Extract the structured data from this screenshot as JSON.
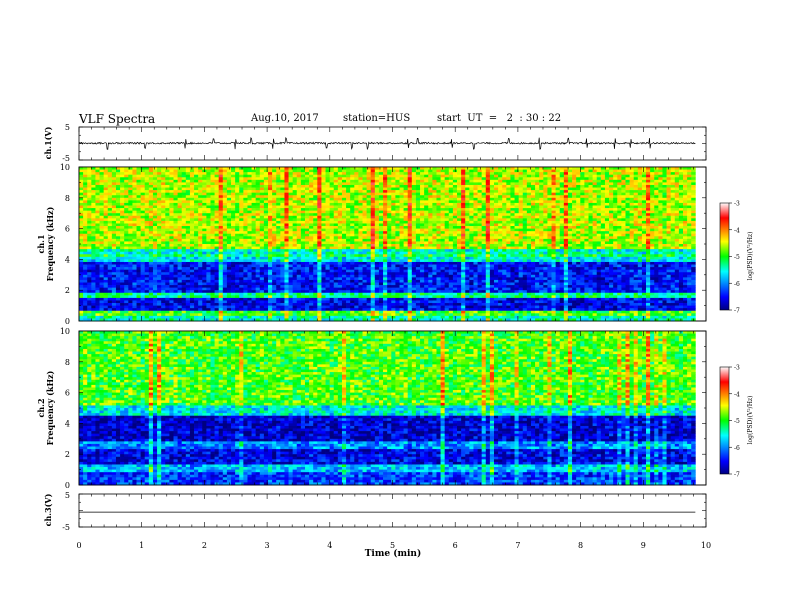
{
  "header": {
    "title": "VLF Spectra",
    "date": "Aug.10, 2017",
    "station": "station=HUS",
    "start": "start  UT  =   2  : 30 : 22"
  },
  "chart_data": [
    {
      "type": "line",
      "name": "ch1-waveform",
      "ylabel": "ch.1(V)",
      "ylim": [
        -5,
        5
      ],
      "yticks": [
        "5",
        "-5"
      ],
      "xlim": [
        0,
        10
      ],
      "baseline": 0.1,
      "noise_amplitude": 0.25,
      "spike_times": [
        0.45,
        1.05,
        1.7,
        2.15,
        2.5,
        2.75,
        3.1,
        3.3,
        3.95,
        4.35,
        4.6,
        5.25,
        5.4,
        5.95,
        6.3,
        6.85,
        7.35,
        7.8,
        8.1,
        8.55,
        8.8,
        9.1
      ]
    },
    {
      "type": "heatmap",
      "name": "ch1-spectrogram",
      "ylabel": "ch.1\nFrequency  (kHz)",
      "ylim": [
        0,
        10
      ],
      "yticks": [
        "10",
        "8",
        "6",
        "4",
        "2",
        "0"
      ],
      "xlim": [
        0,
        9.83
      ],
      "colorbar": {
        "label": "log(PSD)(V²/Hz)",
        "range": [
          -7,
          -3
        ],
        "ticks": [
          "-3",
          "-4",
          "-5",
          "-6",
          "-7"
        ]
      },
      "bands": [
        {
          "f0": 0.0,
          "f1": 0.3,
          "level": -5.4
        },
        {
          "f0": 0.3,
          "f1": 0.7,
          "level": -4.9
        },
        {
          "f0": 0.7,
          "f1": 1.5,
          "level": -6.6
        },
        {
          "f0": 1.5,
          "f1": 1.8,
          "level": -5.3
        },
        {
          "f0": 1.8,
          "f1": 3.8,
          "level": -6.5
        },
        {
          "f0": 3.8,
          "f1": 4.1,
          "level": -5.6
        },
        {
          "f0": 4.1,
          "f1": 4.4,
          "level": -5.2
        },
        {
          "f0": 4.4,
          "f1": 4.7,
          "level": -5.5
        },
        {
          "f0": 4.7,
          "f1": 10.0,
          "level": -4.6
        }
      ]
    },
    {
      "type": "heatmap",
      "name": "ch2-spectrogram",
      "ylabel": "ch.2\nFrequency  (kHz)",
      "ylim": [
        0,
        10
      ],
      "yticks": [
        "10",
        "8",
        "6",
        "4",
        "2",
        "0"
      ],
      "xlim": [
        0,
        9.83
      ],
      "colorbar": {
        "label": "log(PSD)(V²/Hz)",
        "range": [
          -7,
          -3
        ],
        "ticks": [
          "-3",
          "-4",
          "-5",
          "-6",
          "-7"
        ]
      },
      "bands": [
        {
          "f0": 0.0,
          "f1": 0.8,
          "level": -6.3
        },
        {
          "f0": 0.8,
          "f1": 1.3,
          "level": -5.8
        },
        {
          "f0": 1.3,
          "f1": 2.4,
          "level": -6.6
        },
        {
          "f0": 2.4,
          "f1": 2.8,
          "level": -6.0
        },
        {
          "f0": 2.8,
          "f1": 4.5,
          "level": -6.7
        },
        {
          "f0": 4.5,
          "f1": 5.2,
          "level": -5.6
        },
        {
          "f0": 5.2,
          "f1": 10.0,
          "level": -4.9
        }
      ]
    },
    {
      "type": "line",
      "name": "ch3-waveform",
      "ylabel": "ch.3(V)",
      "ylim": [
        -5,
        5
      ],
      "yticks": [
        "5",
        "-5"
      ],
      "xlim": [
        0,
        10
      ],
      "baseline": -0.5,
      "xlabel": "Time  (min)",
      "xticks": [
        "0",
        "1",
        "2",
        "3",
        "4",
        "5",
        "6",
        "7",
        "8",
        "9",
        "10"
      ]
    }
  ]
}
